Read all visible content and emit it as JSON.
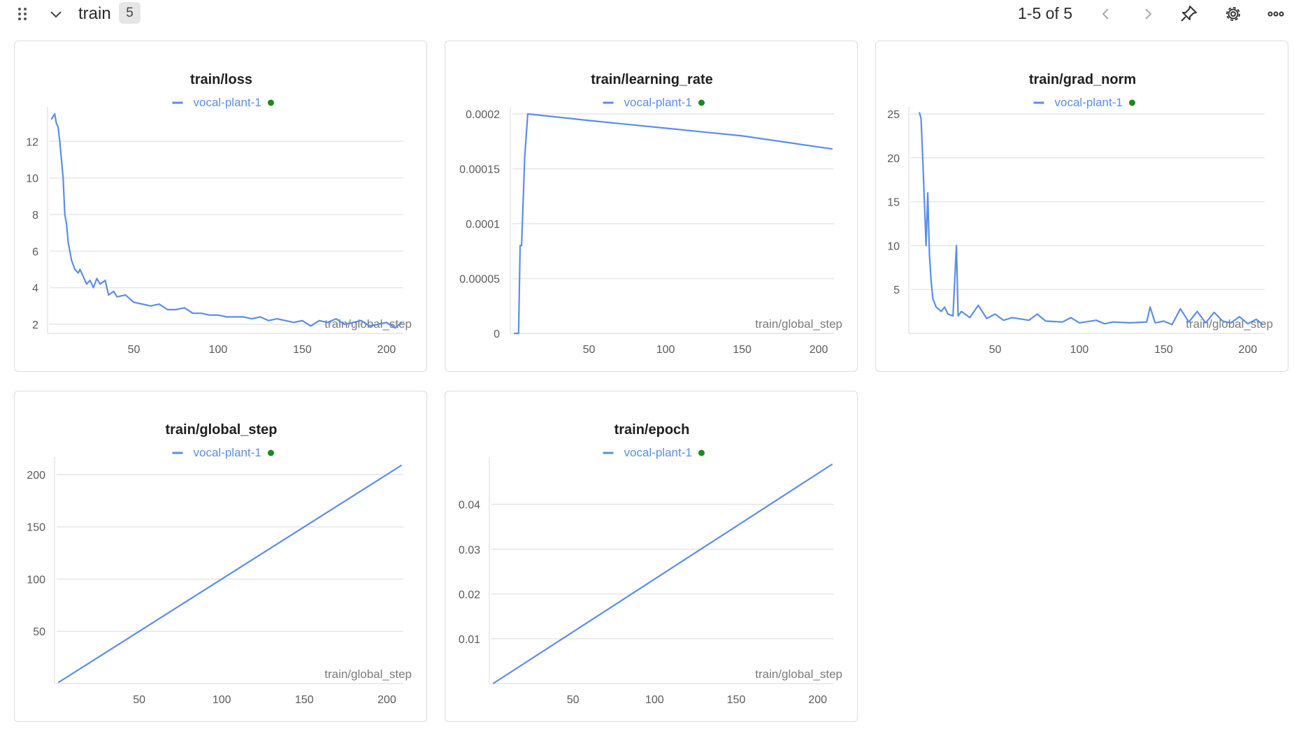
{
  "header": {
    "section_name": "train",
    "count": "5",
    "pager": "1-5 of 5",
    "icons": [
      "drag-handle-icon",
      "chevron-down-icon",
      "chevron-left-icon",
      "chevron-right-icon",
      "pin-icon",
      "gear-icon",
      "more-icon"
    ]
  },
  "colors": {
    "series": "#5b8ee6",
    "status_dot": "#1a8a1a",
    "grid": "#e6e6e6"
  },
  "chart_data": [
    {
      "type": "line",
      "title": "train/loss",
      "xlabel": "train/global_step",
      "ylabel": "",
      "xlim": [
        0,
        210
      ],
      "ylim": [
        1.5,
        13.5
      ],
      "xticks": [
        50,
        100,
        150,
        200
      ],
      "yticks": [
        2,
        4,
        6,
        8,
        10,
        12
      ],
      "series": [
        {
          "name": "vocal-plant-1",
          "values": [
            [
              1,
              13.2
            ],
            [
              3,
              13.5
            ],
            [
              4,
              13.0
            ],
            [
              5,
              12.8
            ],
            [
              6,
              12.0
            ],
            [
              7,
              11.0
            ],
            [
              8,
              10.0
            ],
            [
              9,
              8.0
            ],
            [
              10,
              7.5
            ],
            [
              11,
              6.5
            ],
            [
              12,
              6.0
            ],
            [
              13,
              5.5
            ],
            [
              15,
              5.0
            ],
            [
              17,
              4.8
            ],
            [
              18,
              5.0
            ],
            [
              20,
              4.6
            ],
            [
              22,
              4.2
            ],
            [
              24,
              4.4
            ],
            [
              26,
              4.0
            ],
            [
              28,
              4.5
            ],
            [
              30,
              4.2
            ],
            [
              33,
              4.4
            ],
            [
              35,
              3.6
            ],
            [
              38,
              3.8
            ],
            [
              40,
              3.5
            ],
            [
              45,
              3.6
            ],
            [
              50,
              3.2
            ],
            [
              55,
              3.1
            ],
            [
              60,
              3.0
            ],
            [
              65,
              3.1
            ],
            [
              70,
              2.8
            ],
            [
              75,
              2.8
            ],
            [
              80,
              2.9
            ],
            [
              85,
              2.6
            ],
            [
              90,
              2.6
            ],
            [
              95,
              2.5
            ],
            [
              100,
              2.5
            ],
            [
              105,
              2.4
            ],
            [
              110,
              2.4
            ],
            [
              115,
              2.4
            ],
            [
              120,
              2.3
            ],
            [
              125,
              2.4
            ],
            [
              130,
              2.2
            ],
            [
              135,
              2.3
            ],
            [
              140,
              2.2
            ],
            [
              145,
              2.1
            ],
            [
              150,
              2.2
            ],
            [
              155,
              1.9
            ],
            [
              160,
              2.2
            ],
            [
              165,
              2.1
            ],
            [
              170,
              2.3
            ],
            [
              175,
              2.0
            ],
            [
              180,
              2.1
            ],
            [
              185,
              2.2
            ],
            [
              190,
              1.9
            ],
            [
              195,
              2.0
            ],
            [
              200,
              2.1
            ],
            [
              205,
              1.8
            ],
            [
              209,
              2.1
            ]
          ]
        }
      ]
    },
    {
      "type": "line",
      "title": "train/learning_rate",
      "xlabel": "train/global_step",
      "ylabel": "",
      "xlim": [
        0,
        210
      ],
      "ylim": [
        0,
        0.0002
      ],
      "xticks": [
        50,
        100,
        150,
        200
      ],
      "yticks": [
        0,
        5e-05,
        0.0001,
        0.00015,
        0.0002
      ],
      "ytick_labels": [
        "0",
        "0.00005",
        "0.0001",
        "0.00015",
        "0.0002"
      ],
      "series": [
        {
          "name": "vocal-plant-1",
          "values": [
            [
              1,
              0
            ],
            [
              4,
              0
            ],
            [
              5,
              8e-05
            ],
            [
              6,
              8e-05
            ],
            [
              8,
              0.00016
            ],
            [
              10,
              0.0002
            ],
            [
              50,
              0.000194
            ],
            [
              100,
              0.000187
            ],
            [
              150,
              0.00018
            ],
            [
              209,
              0.000168
            ]
          ]
        }
      ]
    },
    {
      "type": "line",
      "title": "train/grad_norm",
      "xlabel": "train/global_step",
      "ylabel": "",
      "xlim": [
        0,
        210
      ],
      "ylim": [
        0,
        25
      ],
      "xticks": [
        50,
        100,
        150,
        200
      ],
      "yticks": [
        5,
        10,
        15,
        20,
        25
      ],
      "series": [
        {
          "name": "vocal-plant-1",
          "values": [
            [
              5,
              25.2
            ],
            [
              6,
              24.5
            ],
            [
              7,
              20
            ],
            [
              8,
              15
            ],
            [
              9,
              10
            ],
            [
              10,
              16
            ],
            [
              11,
              9
            ],
            [
              12,
              6
            ],
            [
              13,
              4
            ],
            [
              15,
              3
            ],
            [
              18,
              2.5
            ],
            [
              20,
              3
            ],
            [
              22,
              2.2
            ],
            [
              25,
              2
            ],
            [
              27,
              10
            ],
            [
              28,
              2
            ],
            [
              30,
              2.5
            ],
            [
              35,
              1.8
            ],
            [
              40,
              3.2
            ],
            [
              45,
              1.7
            ],
            [
              50,
              2.2
            ],
            [
              55,
              1.5
            ],
            [
              60,
              1.8
            ],
            [
              70,
              1.5
            ],
            [
              75,
              2.2
            ],
            [
              80,
              1.4
            ],
            [
              90,
              1.3
            ],
            [
              95,
              1.8
            ],
            [
              100,
              1.2
            ],
            [
              110,
              1.5
            ],
            [
              115,
              1.1
            ],
            [
              120,
              1.3
            ],
            [
              130,
              1.2
            ],
            [
              140,
              1.3
            ],
            [
              142,
              3.0
            ],
            [
              145,
              1.2
            ],
            [
              150,
              1.4
            ],
            [
              155,
              1.0
            ],
            [
              160,
              2.8
            ],
            [
              165,
              1.3
            ],
            [
              170,
              2.5
            ],
            [
              175,
              1.2
            ],
            [
              180,
              2.4
            ],
            [
              185,
              1.4
            ],
            [
              190,
              1.2
            ],
            [
              195,
              1.9
            ],
            [
              200,
              1.1
            ],
            [
              205,
              1.6
            ],
            [
              209,
              1.0
            ]
          ]
        }
      ]
    },
    {
      "type": "line",
      "title": "train/global_step",
      "xlabel": "train/global_step",
      "ylabel": "",
      "xlim": [
        0,
        210
      ],
      "ylim": [
        0,
        210
      ],
      "xticks": [
        50,
        100,
        150,
        200
      ],
      "yticks": [
        50,
        100,
        150,
        200
      ],
      "series": [
        {
          "name": "vocal-plant-1",
          "values": [
            [
              1,
              1
            ],
            [
              209,
              209
            ]
          ]
        }
      ]
    },
    {
      "type": "line",
      "title": "train/epoch",
      "xlabel": "train/global_step",
      "ylabel": "",
      "xlim": [
        0,
        210
      ],
      "ylim": [
        0,
        0.049
      ],
      "xticks": [
        50,
        100,
        150,
        200
      ],
      "yticks": [
        0.01,
        0.02,
        0.03,
        0.04
      ],
      "series": [
        {
          "name": "vocal-plant-1",
          "values": [
            [
              1,
              0
            ],
            [
              209,
              0.049
            ]
          ]
        }
      ]
    }
  ]
}
